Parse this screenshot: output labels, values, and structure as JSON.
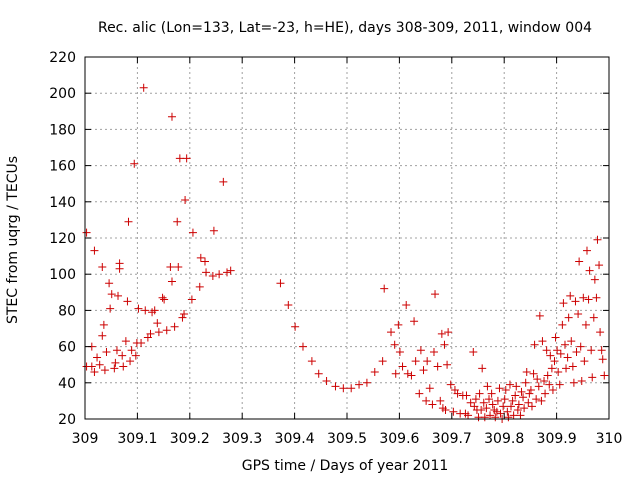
{
  "chart_data": {
    "type": "scatter",
    "title": "Rec. alic (Lon=133, Lat=-23, h=HE), days 308-309, 2011, window 004",
    "xlabel": "GPS time / Days of year 2011",
    "ylabel": "STEC from uqrg / TECUs",
    "xlim": [
      309,
      310
    ],
    "ylim": [
      20,
      220
    ],
    "xticks": [
      309,
      309.1,
      309.2,
      309.3,
      309.4,
      309.5,
      309.6,
      309.7,
      309.8,
      309.9,
      310
    ],
    "xtick_labels": [
      "309",
      "309.1",
      "309.2",
      "309.3",
      "309.4",
      "309.5",
      "309.6",
      "309.7",
      "309.8",
      "309.9",
      "310"
    ],
    "yticks": [
      20,
      40,
      60,
      80,
      100,
      120,
      140,
      160,
      180,
      200,
      220
    ],
    "ytick_labels": [
      "20",
      "40",
      "60",
      "80",
      "100",
      "120",
      "140",
      "160",
      "180",
      "200",
      "220"
    ],
    "grid": true,
    "legend": "none",
    "marker": "+",
    "color": "#cc0000",
    "series": [
      {
        "points": [
          [
            309.003,
            49
          ],
          [
            309.003,
            123
          ],
          [
            309.013,
            49
          ],
          [
            309.013,
            60
          ],
          [
            309.018,
            46
          ],
          [
            309.018,
            113
          ],
          [
            309.023,
            54
          ],
          [
            309.028,
            50
          ],
          [
            309.033,
            66
          ],
          [
            309.033,
            104
          ],
          [
            309.036,
            72
          ],
          [
            309.038,
            47
          ],
          [
            309.041,
            57
          ],
          [
            309.046,
            95
          ],
          [
            309.048,
            81
          ],
          [
            309.051,
            89
          ],
          [
            309.056,
            48
          ],
          [
            309.058,
            51
          ],
          [
            309.061,
            58
          ],
          [
            309.063,
            88
          ],
          [
            309.066,
            103
          ],
          [
            309.066,
            106
          ],
          [
            309.071,
            55
          ],
          [
            309.073,
            49
          ],
          [
            309.078,
            63
          ],
          [
            309.081,
            85
          ],
          [
            309.083,
            129
          ],
          [
            309.086,
            52
          ],
          [
            309.089,
            58
          ],
          [
            309.094,
            161
          ],
          [
            309.097,
            55
          ],
          [
            309.099,
            62
          ],
          [
            309.102,
            81
          ],
          [
            309.107,
            62
          ],
          [
            309.112,
            203
          ],
          [
            309.115,
            80
          ],
          [
            309.12,
            65
          ],
          [
            309.125,
            67
          ],
          [
            309.128,
            79
          ],
          [
            309.133,
            80
          ],
          [
            309.138,
            73
          ],
          [
            309.141,
            68
          ],
          [
            309.148,
            87
          ],
          [
            309.151,
            86
          ],
          [
            309.156,
            69
          ],
          [
            309.163,
            104
          ],
          [
            309.166,
            187
          ],
          [
            309.166,
            96
          ],
          [
            309.171,
            71
          ],
          [
            309.176,
            129
          ],
          [
            309.178,
            104
          ],
          [
            309.181,
            164
          ],
          [
            309.186,
            76
          ],
          [
            309.189,
            78
          ],
          [
            309.191,
            141
          ],
          [
            309.194,
            164
          ],
          [
            309.204,
            86
          ],
          [
            309.206,
            123
          ],
          [
            309.219,
            93
          ],
          [
            309.221,
            109
          ],
          [
            309.229,
            107
          ],
          [
            309.231,
            101
          ],
          [
            309.244,
            99
          ],
          [
            309.246,
            124
          ],
          [
            309.256,
            100
          ],
          [
            309.264,
            151
          ],
          [
            309.271,
            101
          ],
          [
            309.278,
            102
          ],
          [
            309.373,
            95
          ],
          [
            309.388,
            83
          ],
          [
            309.401,
            71
          ],
          [
            309.416,
            60
          ],
          [
            309.433,
            52
          ],
          [
            309.446,
            45
          ],
          [
            309.461,
            41
          ],
          [
            309.478,
            38
          ],
          [
            309.493,
            37
          ],
          [
            309.508,
            37
          ],
          [
            309.523,
            39
          ],
          [
            309.538,
            40
          ],
          [
            309.553,
            46
          ],
          [
            309.568,
            52
          ],
          [
            309.571,
            92
          ],
          [
            309.584,
            68
          ],
          [
            309.591,
            61
          ],
          [
            309.593,
            45
          ],
          [
            309.598,
            72
          ],
          [
            309.601,
            57
          ],
          [
            309.606,
            49
          ],
          [
            309.613,
            83
          ],
          [
            309.616,
            45
          ],
          [
            309.623,
            44
          ],
          [
            309.628,
            74
          ],
          [
            309.631,
            52
          ],
          [
            309.638,
            34
          ],
          [
            309.641,
            58
          ],
          [
            309.646,
            47
          ],
          [
            309.651,
            30
          ],
          [
            309.653,
            52
          ],
          [
            309.658,
            37
          ],
          [
            309.663,
            28
          ],
          [
            309.666,
            57
          ],
          [
            309.668,
            89
          ],
          [
            309.673,
            49
          ],
          [
            309.678,
            30
          ],
          [
            309.681,
            67
          ],
          [
            309.683,
            26
          ],
          [
            309.686,
            61
          ],
          [
            309.688,
            25
          ],
          [
            309.691,
            50
          ],
          [
            309.693,
            68
          ],
          [
            309.698,
            39
          ],
          [
            309.703,
            24
          ],
          [
            309.706,
            36
          ],
          [
            309.711,
            34
          ],
          [
            309.716,
            23
          ],
          [
            309.721,
            33
          ],
          [
            309.726,
            23
          ],
          [
            309.728,
            33
          ],
          [
            309.731,
            22
          ],
          [
            309.736,
            29
          ],
          [
            309.741,
            57
          ],
          [
            309.743,
            27
          ],
          [
            309.746,
            31
          ],
          [
            309.748,
            25
          ],
          [
            309.751,
            21
          ],
          [
            309.753,
            34
          ],
          [
            309.756,
            25
          ],
          [
            309.758,
            48
          ],
          [
            309.761,
            29
          ],
          [
            309.763,
            21
          ],
          [
            309.766,
            26
          ],
          [
            309.768,
            38
          ],
          [
            309.771,
            31
          ],
          [
            309.773,
            22
          ],
          [
            309.776,
            34
          ],
          [
            309.778,
            28
          ],
          [
            309.781,
            25
          ],
          [
            309.783,
            21
          ],
          [
            309.786,
            24
          ],
          [
            309.788,
            30
          ],
          [
            309.791,
            37
          ],
          [
            309.793,
            23
          ],
          [
            309.796,
            20
          ],
          [
            309.798,
            27
          ],
          [
            309.801,
            31
          ],
          [
            309.803,
            36
          ],
          [
            309.806,
            24
          ],
          [
            309.808,
            21
          ],
          [
            309.811,
            39
          ],
          [
            309.813,
            27
          ],
          [
            309.816,
            30
          ],
          [
            309.818,
            22
          ],
          [
            309.821,
            33
          ],
          [
            309.823,
            38
          ],
          [
            309.826,
            25
          ],
          [
            309.828,
            28
          ],
          [
            309.831,
            22
          ],
          [
            309.833,
            35
          ],
          [
            309.836,
            32
          ],
          [
            309.838,
            26
          ],
          [
            309.841,
            40
          ],
          [
            309.843,
            46
          ],
          [
            309.846,
            29
          ],
          [
            309.848,
            34
          ],
          [
            309.851,
            36
          ],
          [
            309.853,
            27
          ],
          [
            309.856,
            45
          ],
          [
            309.858,
            61
          ],
          [
            309.861,
            31
          ],
          [
            309.863,
            42
          ],
          [
            309.866,
            38
          ],
          [
            309.868,
            77
          ],
          [
            309.871,
            30
          ],
          [
            309.873,
            63
          ],
          [
            309.876,
            41
          ],
          [
            309.878,
            34
          ],
          [
            309.881,
            58
          ],
          [
            309.883,
            44
          ],
          [
            309.886,
            39
          ],
          [
            309.888,
            55
          ],
          [
            309.891,
            48
          ],
          [
            309.893,
            36
          ],
          [
            309.896,
            52
          ],
          [
            309.898,
            65
          ],
          [
            309.901,
            58
          ],
          [
            309.903,
            46
          ],
          [
            309.906,
            39
          ],
          [
            309.908,
            56
          ],
          [
            309.911,
            72
          ],
          [
            309.913,
            84
          ],
          [
            309.916,
            61
          ],
          [
            309.918,
            48
          ],
          [
            309.921,
            54
          ],
          [
            309.923,
            76
          ],
          [
            309.926,
            88
          ],
          [
            309.928,
            63
          ],
          [
            309.931,
            49
          ],
          [
            309.933,
            40
          ],
          [
            309.936,
            85
          ],
          [
            309.938,
            57
          ],
          [
            309.941,
            78
          ],
          [
            309.943,
            107
          ],
          [
            309.946,
            60
          ],
          [
            309.948,
            41
          ],
          [
            309.951,
            87
          ],
          [
            309.953,
            52
          ],
          [
            309.956,
            72
          ],
          [
            309.958,
            113
          ],
          [
            309.961,
            86
          ],
          [
            309.963,
            102
          ],
          [
            309.966,
            58
          ],
          [
            309.968,
            43
          ],
          [
            309.971,
            76
          ],
          [
            309.973,
            97
          ],
          [
            309.976,
            87
          ],
          [
            309.978,
            119
          ],
          [
            309.981,
            105
          ],
          [
            309.983,
            68
          ],
          [
            309.986,
            58
          ],
          [
            309.988,
            53
          ],
          [
            309.991,
            44
          ]
        ]
      }
    ]
  }
}
